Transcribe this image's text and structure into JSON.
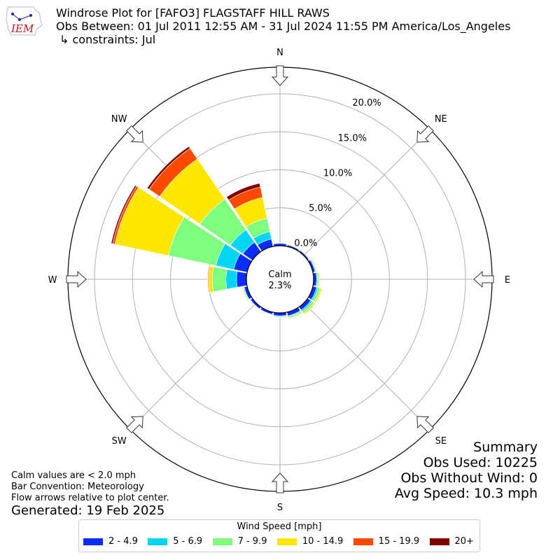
{
  "header": {
    "logo_text": "IEM",
    "title_line1": "Windrose Plot for [FAFO3] FLAGSTAFF HILL RAWS",
    "title_line2": "Obs Between: 01 Jul 2011 12:55 AM - 31 Jul 2024 11:55 PM America/Los_Angeles",
    "title_line3": "↳ constraints: Jul"
  },
  "notes": {
    "line1": "Calm values are < 2.0 mph",
    "line2": "Bar Convention: Meteorology",
    "line3": "Flow arrows relative to plot center.",
    "generated": "Generated: 19 Feb 2025"
  },
  "summary": {
    "title": "Summary",
    "obs_used": "Obs Used: 10225",
    "obs_without_wind": "Obs Without Wind: 0",
    "avg_speed": "Avg Speed: 10.3 mph"
  },
  "legend": {
    "title": "Wind Speed [mph]",
    "items": [
      {
        "label": "2 - 4.9",
        "color": "#0a2cff"
      },
      {
        "label": "5 - 6.9",
        "color": "#00d5f5"
      },
      {
        "label": "7 - 9.9",
        "color": "#7dff7d"
      },
      {
        "label": "10 - 14.9",
        "color": "#ffe600"
      },
      {
        "label": "15 - 19.9",
        "color": "#ff4a00"
      },
      {
        "label": "20+",
        "color": "#800000"
      }
    ]
  },
  "chart_data": {
    "type": "windrose",
    "calm_label": "Calm",
    "calm_value": "2.3%",
    "radial_ticks": [
      "0.0%",
      "5.0%",
      "10.0%",
      "15.0%",
      "20.0%"
    ],
    "radial_max": 23.5,
    "compass_labels": [
      "N",
      "NE",
      "E",
      "SE",
      "S",
      "SW",
      "W",
      "NW"
    ],
    "directions": [
      "N",
      "NNE",
      "NE",
      "ENE",
      "E",
      "ESE",
      "SE",
      "SSE",
      "S",
      "SSW",
      "SW",
      "WSW",
      "W",
      "WNW",
      "NW",
      "NNW"
    ],
    "speed_bins": [
      "2 - 4.9",
      "5 - 6.9",
      "7 - 9.9",
      "10 - 14.9",
      "15 - 19.9",
      "20+"
    ],
    "series": [
      {
        "name": "2 - 4.9",
        "values": [
          0.3,
          0.2,
          0.2,
          0.3,
          0.4,
          0.5,
          0.5,
          0.5,
          0.4,
          0.3,
          0.3,
          0.4,
          1.3,
          1.8,
          1.5,
          1.0
        ]
      },
      {
        "name": "5 - 6.9",
        "values": [
          0.0,
          0.0,
          0.0,
          0.1,
          0.1,
          0.2,
          0.2,
          0.1,
          0.1,
          0.0,
          0.0,
          0.1,
          1.4,
          2.4,
          2.0,
          1.0
        ]
      },
      {
        "name": "7 - 9.9",
        "values": [
          0.0,
          0.0,
          0.0,
          0.1,
          0.2,
          0.3,
          0.3,
          0.2,
          0.1,
          0.0,
          0.0,
          0.1,
          1.8,
          6.4,
          4.9,
          1.8
        ]
      },
      {
        "name": "10 - 14.9",
        "values": [
          0.0,
          0.0,
          0.0,
          0.1,
          0.1,
          0.2,
          0.2,
          0.1,
          0.0,
          0.0,
          0.0,
          0.1,
          0.5,
          7.2,
          6.4,
          2.8
        ]
      },
      {
        "name": "15 - 19.9",
        "values": [
          0.0,
          0.0,
          0.0,
          0.0,
          0.0,
          0.0,
          0.0,
          0.0,
          0.0,
          0.0,
          0.0,
          0.0,
          0.1,
          0.3,
          1.7,
          1.4
        ]
      },
      {
        "name": "20+",
        "values": [
          0.0,
          0.0,
          0.0,
          0.0,
          0.0,
          0.0,
          0.0,
          0.0,
          0.0,
          0.0,
          0.0,
          0.0,
          0.0,
          0.2,
          0.3,
          0.5
        ]
      }
    ]
  }
}
